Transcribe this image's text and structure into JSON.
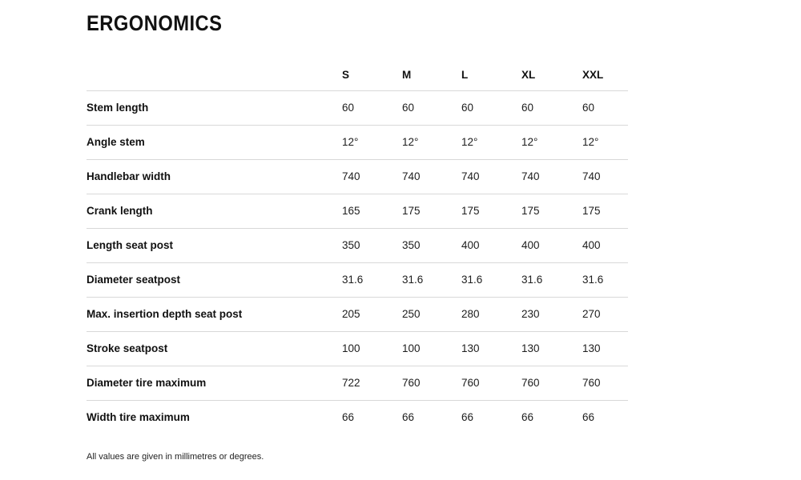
{
  "title": "ERGONOMICS",
  "table": {
    "headers": [
      "",
      "S",
      "M",
      "L",
      "XL",
      "XXL"
    ],
    "rows": [
      {
        "label": "Stem length",
        "values": [
          "60",
          "60",
          "60",
          "60",
          "60"
        ]
      },
      {
        "label": "Angle stem",
        "values": [
          "12°",
          "12°",
          "12°",
          "12°",
          "12°"
        ]
      },
      {
        "label": "Handlebar width",
        "values": [
          "740",
          "740",
          "740",
          "740",
          "740"
        ]
      },
      {
        "label": "Crank length",
        "values": [
          "165",
          "175",
          "175",
          "175",
          "175"
        ]
      },
      {
        "label": "Length seat post",
        "values": [
          "350",
          "350",
          "400",
          "400",
          "400"
        ]
      },
      {
        "label": "Diameter seatpost",
        "values": [
          "31.6",
          "31.6",
          "31.6",
          "31.6",
          "31.6"
        ]
      },
      {
        "label": "Max. insertion depth seat post",
        "values": [
          "205",
          "250",
          "280",
          "230",
          "270"
        ]
      },
      {
        "label": "Stroke seatpost",
        "values": [
          "100",
          "100",
          "130",
          "130",
          "130"
        ]
      },
      {
        "label": "Diameter tire maximum",
        "values": [
          "722",
          "760",
          "760",
          "760",
          "760"
        ]
      },
      {
        "label": "Width tire maximum",
        "values": [
          "66",
          "66",
          "66",
          "66",
          "66"
        ]
      }
    ]
  },
  "footnote": "All values are given in millimetres or degrees.",
  "colors": {
    "text_primary": "#111111",
    "text_value": "#1d1d1d",
    "divider": "#d8d8d8",
    "background": "#ffffff"
  }
}
